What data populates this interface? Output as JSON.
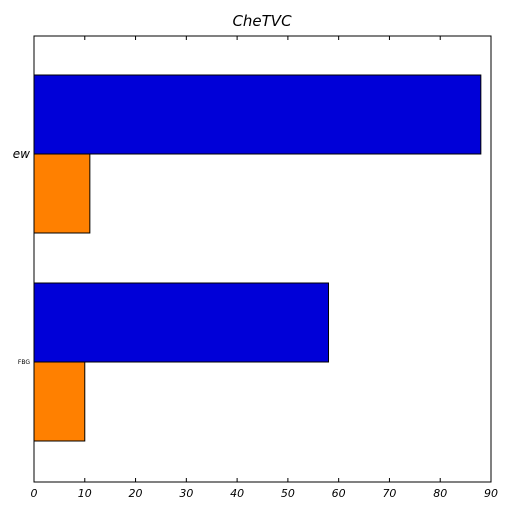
{
  "chart_data": {
    "type": "bar",
    "orientation": "horizontal",
    "title": "CheTVC",
    "xlabel": "",
    "ylabel": "",
    "categories": [
      "ew",
      "FBG"
    ],
    "series": [
      {
        "values": [
          88,
          58
        ],
        "color": "#0000d8"
      },
      {
        "values": [
          11,
          10
        ],
        "color": "#ff8000"
      }
    ],
    "xlim": [
      0,
      90
    ],
    "xticks": [
      0,
      10,
      20,
      30,
      40,
      50,
      60,
      70,
      80,
      90
    ],
    "grid": false,
    "legend": "none"
  }
}
